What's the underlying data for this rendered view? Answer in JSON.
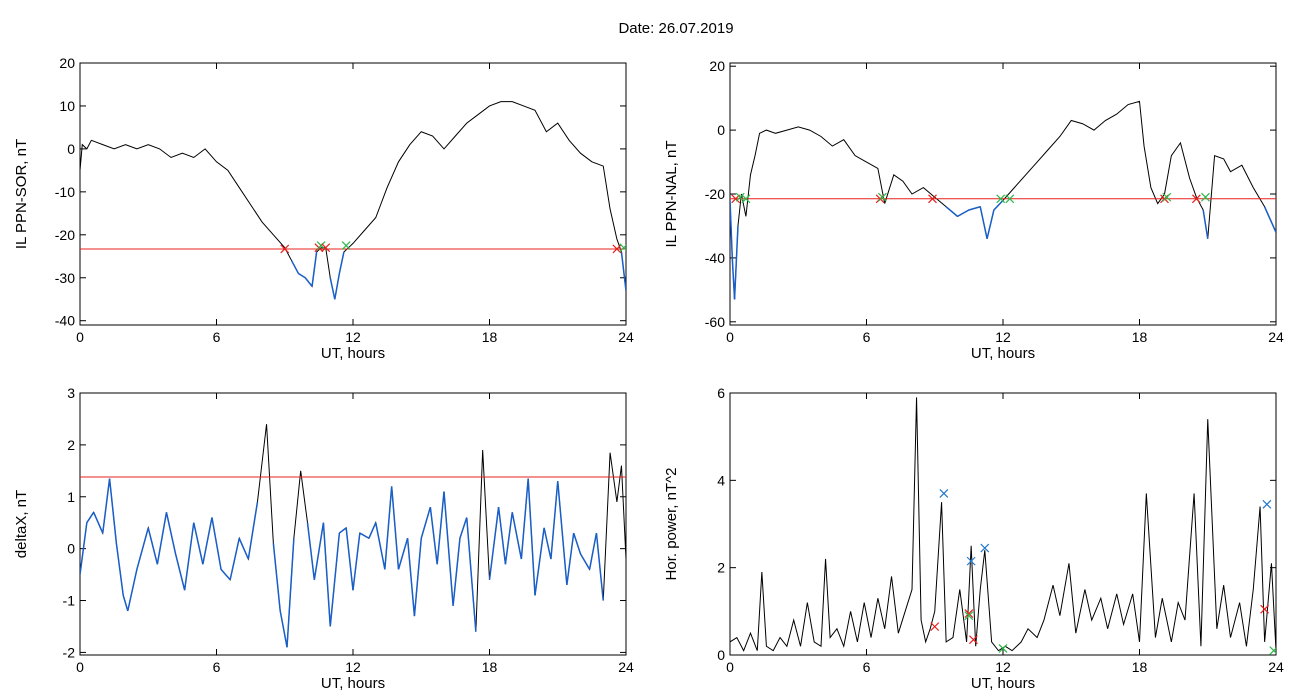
{
  "page": {
    "title": "Date:  26.07.2019"
  },
  "colors": {
    "trace": "#000000",
    "threshold": "#e8201c",
    "below": "#1a5fc8",
    "marker_red": "#e8201c",
    "marker_green": "#2db84a",
    "marker_blue": "#2277cc"
  },
  "chart_data": [
    {
      "id": "sor",
      "type": "line",
      "title": "",
      "xlabel": "UT, hours",
      "ylabel": "IL PPN-SOR, nT",
      "xlim": [
        0,
        24
      ],
      "ylim": [
        -41,
        20
      ],
      "xticks": [
        0,
        6,
        12,
        18,
        24
      ],
      "yticks": [
        20,
        10,
        0,
        -10,
        -20,
        -30,
        -40
      ],
      "grid": false,
      "legend": "none",
      "threshold": -23.3,
      "series": [
        {
          "x": [
            0,
            0.1,
            0.3,
            0.5,
            1,
            1.5,
            2,
            2.5,
            3,
            3.5,
            4,
            4.5,
            5,
            5.5,
            6,
            6.5,
            7,
            7.5,
            8,
            8.5,
            9,
            9.3,
            9.6,
            9.9,
            10.2,
            10.4,
            10.6,
            10.8,
            11.0,
            11.2,
            11.4,
            11.6,
            11.8,
            12,
            12.5,
            13,
            13.5,
            14,
            14.5,
            15,
            15.5,
            16,
            16.5,
            17,
            17.5,
            18,
            18.5,
            19,
            19.5,
            20,
            20.5,
            21,
            21.5,
            22,
            22.5,
            23,
            23.3,
            23.6,
            23.8,
            24
          ],
          "y": [
            -5,
            1,
            0,
            2,
            1,
            0,
            1,
            0,
            1,
            0,
            -2,
            -1,
            -2,
            0,
            -3,
            -5,
            -9,
            -13,
            -17,
            -20,
            -23,
            -26,
            -29,
            -30,
            -32,
            -24,
            -23,
            -23,
            -30,
            -35,
            -29,
            -24,
            -23,
            -22,
            -19,
            -16,
            -9,
            -3,
            1,
            4,
            3,
            0,
            3,
            6,
            8,
            10,
            11,
            11,
            10,
            9,
            4,
            6,
            2,
            -1,
            -3,
            -4,
            -14,
            -21,
            -24,
            -33
          ]
        }
      ],
      "markers": [
        {
          "x": 9.0,
          "y": -23.3,
          "color": "red"
        },
        {
          "x": 10.5,
          "y": -23.0,
          "color": "red"
        },
        {
          "x": 10.6,
          "y": -22.5,
          "color": "green"
        },
        {
          "x": 10.8,
          "y": -23.0,
          "color": "red"
        },
        {
          "x": 11.7,
          "y": -22.5,
          "color": "green"
        },
        {
          "x": 23.6,
          "y": -23.3,
          "color": "red"
        },
        {
          "x": 23.9,
          "y": -23.0,
          "color": "green"
        }
      ]
    },
    {
      "id": "nal",
      "type": "line",
      "title": "",
      "xlabel": "UT, hours",
      "ylabel": "IL PPN-NAL, nT",
      "xlim": [
        0,
        24
      ],
      "ylim": [
        -61,
        21
      ],
      "xticks": [
        0,
        6,
        12,
        18,
        24
      ],
      "yticks": [
        20,
        0,
        -20,
        -40,
        -60
      ],
      "grid": false,
      "legend": "none",
      "threshold": -21.5,
      "series": [
        {
          "x": [
            0,
            0.1,
            0.2,
            0.35,
            0.5,
            0.7,
            0.9,
            1.1,
            1.3,
            1.6,
            2,
            2.5,
            3,
            3.5,
            4,
            4.5,
            5,
            5.5,
            6,
            6.5,
            6.8,
            7.2,
            7.6,
            8,
            8.5,
            9,
            9.5,
            10,
            10.5,
            11,
            11.3,
            11.6,
            12,
            12.5,
            13,
            13.5,
            14,
            14.5,
            15,
            15.5,
            16,
            16.5,
            17,
            17.5,
            18,
            18.2,
            18.5,
            18.8,
            19.1,
            19.4,
            19.8,
            20.2,
            20.5,
            20.8,
            21,
            21.3,
            21.7,
            22,
            22.5,
            23,
            23.5,
            24
          ],
          "y": [
            -22,
            -40,
            -53,
            -30,
            -20,
            -27,
            -14,
            -8,
            -1,
            0,
            -1,
            0,
            1,
            0,
            -2,
            -5,
            -3,
            -8,
            -10,
            -12,
            -23,
            -14,
            -16,
            -20,
            -18,
            -21,
            -24,
            -27,
            -25,
            -24,
            -34,
            -25,
            -22,
            -18,
            -14,
            -10,
            -6,
            -2,
            3,
            2,
            0,
            3,
            5,
            8,
            9,
            -5,
            -18,
            -23,
            -20,
            -8,
            -4,
            -15,
            -21,
            -25,
            -34,
            -8,
            -9,
            -13,
            -11,
            -18,
            -24,
            -32
          ]
        }
      ],
      "markers": [
        {
          "x": 0.25,
          "y": -21.5,
          "color": "red"
        },
        {
          "x": 0.45,
          "y": -21.0,
          "color": "green"
        },
        {
          "x": 0.7,
          "y": -21.5,
          "color": "green"
        },
        {
          "x": 6.6,
          "y": -21.5,
          "color": "red"
        },
        {
          "x": 6.7,
          "y": -21.0,
          "color": "green"
        },
        {
          "x": 8.9,
          "y": -21.5,
          "color": "red"
        },
        {
          "x": 11.9,
          "y": -21.5,
          "color": "green"
        },
        {
          "x": 12.3,
          "y": -21.5,
          "color": "green"
        },
        {
          "x": 19.1,
          "y": -21.5,
          "color": "red"
        },
        {
          "x": 19.2,
          "y": -21.0,
          "color": "green"
        },
        {
          "x": 20.5,
          "y": -21.5,
          "color": "red"
        },
        {
          "x": 20.9,
          "y": -21.0,
          "color": "green"
        }
      ]
    },
    {
      "id": "deltax",
      "type": "line",
      "title": "",
      "xlabel": "UT, hours",
      "ylabel": "deltaX, nT",
      "xlim": [
        0,
        24
      ],
      "ylim": [
        -2.05,
        3.0
      ],
      "xticks": [
        0,
        6,
        12,
        18,
        24
      ],
      "yticks": [
        3,
        2,
        1,
        0,
        -1,
        -2
      ],
      "grid": false,
      "legend": "none",
      "threshold": 1.38,
      "series": [
        {
          "x": [
            0,
            0.3,
            0.6,
            1.0,
            1.3,
            1.6,
            1.9,
            2.1,
            2.5,
            3,
            3.4,
            3.8,
            4.2,
            4.6,
            5.0,
            5.4,
            5.8,
            6.2,
            6.6,
            7.0,
            7.4,
            7.8,
            8.2,
            8.5,
            8.8,
            9.1,
            9.4,
            9.7,
            10.0,
            10.3,
            10.7,
            11.0,
            11.4,
            11.7,
            12.0,
            12.3,
            12.7,
            13.0,
            13.4,
            13.7,
            14.0,
            14.4,
            14.7,
            15.0,
            15.4,
            15.7,
            16.0,
            16.4,
            16.7,
            17.0,
            17.4,
            17.7,
            18.0,
            18.4,
            18.7,
            19.0,
            19.4,
            19.7,
            20.0,
            20.4,
            20.7,
            21.0,
            21.4,
            21.7,
            22.0,
            22.4,
            22.7,
            23.0,
            23.3,
            23.6,
            23.8,
            24
          ],
          "y": [
            -0.5,
            0.5,
            0.7,
            0.3,
            1.35,
            0.1,
            -0.9,
            -1.2,
            -0.4,
            0.4,
            -0.3,
            0.7,
            -0.1,
            -0.8,
            0.5,
            -0.3,
            0.6,
            -0.4,
            -0.6,
            0.2,
            -0.2,
            0.9,
            2.4,
            0.1,
            -1.2,
            -1.9,
            0.2,
            1.5,
            0.5,
            -0.6,
            0.5,
            -1.5,
            0.3,
            0.4,
            -0.8,
            0.3,
            0.2,
            0.5,
            -0.4,
            1.2,
            -0.4,
            0.2,
            -1.3,
            0.2,
            0.8,
            -0.3,
            1.1,
            -1.1,
            0.2,
            0.6,
            -1.6,
            1.9,
            -0.6,
            0.8,
            -0.3,
            0.7,
            -0.2,
            1.35,
            -0.9,
            0.4,
            -0.2,
            1.3,
            -0.7,
            0.3,
            -0.1,
            -0.4,
            0.3,
            -1.0,
            1.85,
            0.9,
            1.6,
            -0.2
          ]
        }
      ],
      "markers": []
    },
    {
      "id": "power",
      "type": "line",
      "title": "",
      "xlabel": "UT, hours",
      "ylabel": "Hor. power, nT^2",
      "xlim": [
        0,
        24
      ],
      "ylim": [
        0,
        6
      ],
      "xticks": [
        0,
        6,
        12,
        18,
        24
      ],
      "yticks": [
        6,
        4,
        2,
        0
      ],
      "grid": false,
      "legend": "none",
      "threshold": null,
      "series": [
        {
          "x": [
            0,
            0.3,
            0.6,
            0.9,
            1.2,
            1.4,
            1.6,
            1.9,
            2.2,
            2.5,
            2.8,
            3.1,
            3.4,
            3.7,
            4.0,
            4.2,
            4.4,
            4.7,
            5.0,
            5.3,
            5.6,
            5.9,
            6.2,
            6.5,
            6.8,
            7.1,
            7.4,
            7.7,
            8.0,
            8.2,
            8.4,
            8.6,
            8.8,
            9.0,
            9.3,
            9.5,
            9.8,
            10.1,
            10.4,
            10.6,
            10.8,
            11.0,
            11.2,
            11.5,
            11.8,
            12.1,
            12.4,
            12.8,
            13.1,
            13.5,
            13.8,
            14.2,
            14.5,
            14.9,
            15.2,
            15.6,
            15.9,
            16.3,
            16.6,
            17.0,
            17.3,
            17.7,
            18.0,
            18.3,
            18.7,
            19.0,
            19.4,
            19.7,
            20.0,
            20.4,
            20.7,
            21.0,
            21.4,
            21.7,
            22.0,
            22.4,
            22.7,
            23.0,
            23.3,
            23.5,
            23.8,
            24
          ],
          "y": [
            0.3,
            0.4,
            0.1,
            0.5,
            0.1,
            1.9,
            0.2,
            0.1,
            0.4,
            0.2,
            0.8,
            0.2,
            1.2,
            0.3,
            0.2,
            2.2,
            0.4,
            0.6,
            0.2,
            1.0,
            0.3,
            1.2,
            0.4,
            1.3,
            0.6,
            1.8,
            0.5,
            1.0,
            1.5,
            5.9,
            0.8,
            0.3,
            0.6,
            1.0,
            3.5,
            0.3,
            0.4,
            1.5,
            0.3,
            2.5,
            0.2,
            1.5,
            2.4,
            0.3,
            0.1,
            0.2,
            0.1,
            0.3,
            0.6,
            0.4,
            0.8,
            1.6,
            0.9,
            2.1,
            0.5,
            1.5,
            0.8,
            1.3,
            0.6,
            1.4,
            0.7,
            1.4,
            0.3,
            3.7,
            0.4,
            1.3,
            0.3,
            1.2,
            0.8,
            3.7,
            0.2,
            5.4,
            0.6,
            1.6,
            0.4,
            1.2,
            0.2,
            1.5,
            3.4,
            0.3,
            2.1,
            0.1
          ]
        }
      ],
      "markers": [
        {
          "x": 9.4,
          "y": 3.7,
          "color": "blue"
        },
        {
          "x": 10.6,
          "y": 2.15,
          "color": "blue"
        },
        {
          "x": 11.2,
          "y": 2.45,
          "color": "blue"
        },
        {
          "x": 23.6,
          "y": 3.45,
          "color": "blue"
        },
        {
          "x": 9.0,
          "y": 0.65,
          "color": "red"
        },
        {
          "x": 10.5,
          "y": 0.95,
          "color": "red"
        },
        {
          "x": 10.7,
          "y": 0.35,
          "color": "red"
        },
        {
          "x": 10.5,
          "y": 0.9,
          "color": "green"
        },
        {
          "x": 23.5,
          "y": 1.05,
          "color": "red"
        },
        {
          "x": 12.0,
          "y": 0.15,
          "color": "green"
        },
        {
          "x": 23.9,
          "y": 0.1,
          "color": "green"
        }
      ]
    }
  ]
}
